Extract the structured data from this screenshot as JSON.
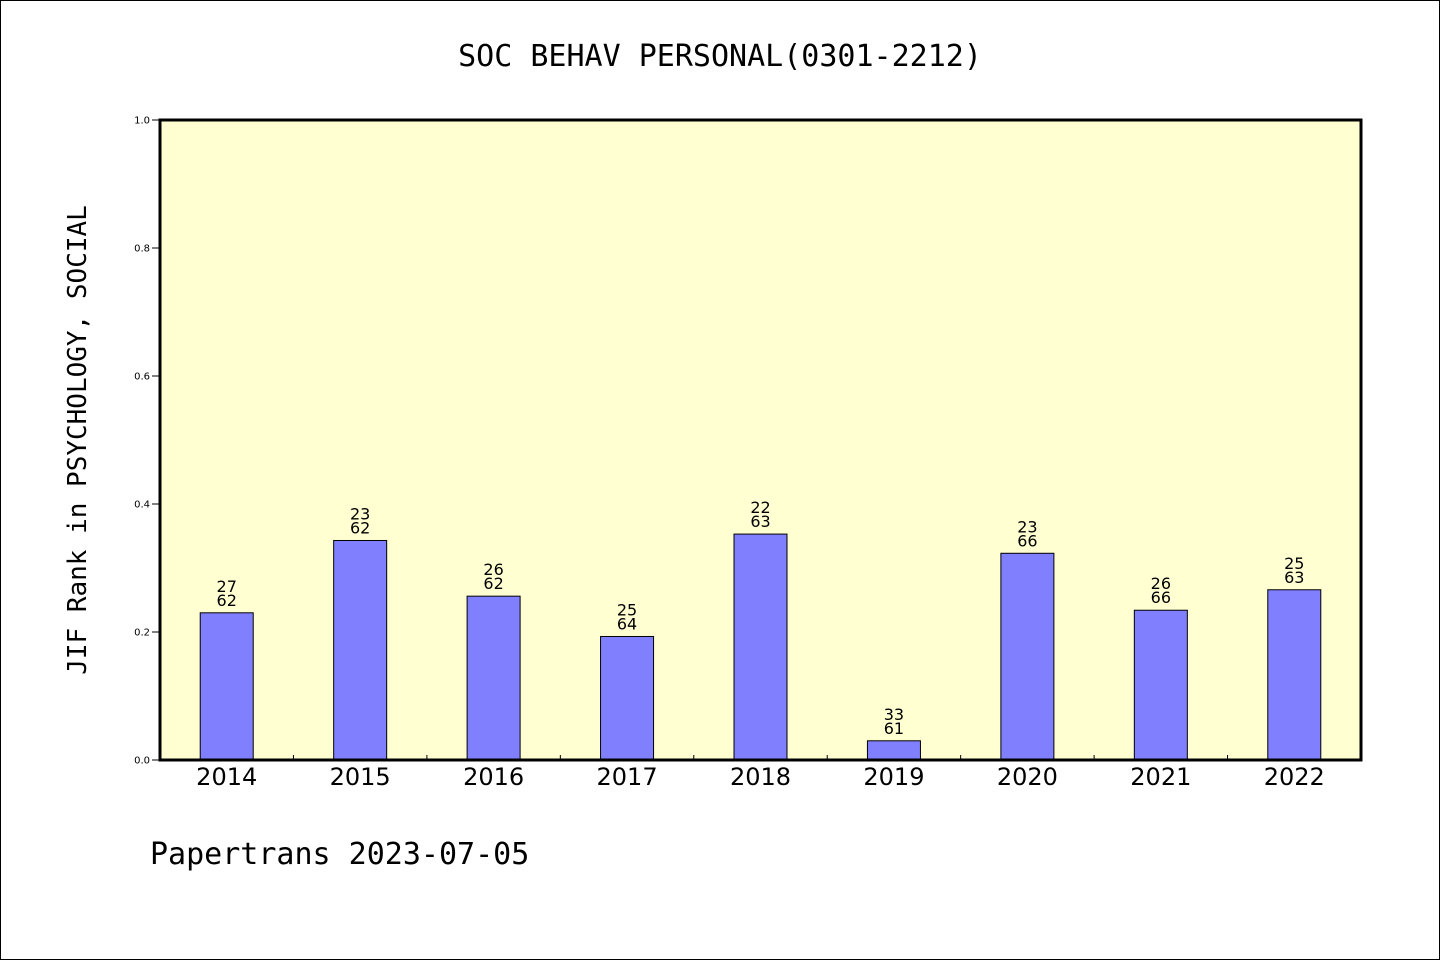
{
  "chart_data": {
    "type": "bar",
    "title": "SOC BEHAV PERSONAL(0301-2212)",
    "ylabel": "JIF Rank in PSYCHOLOGY, SOCIAL",
    "xlabel": "",
    "ylim": [
      0,
      1.0
    ],
    "yticks": [
      "0.0",
      "0.2",
      "0.4",
      "0.6",
      "0.8",
      "1.0"
    ],
    "categories": [
      "2014",
      "2015",
      "2016",
      "2017",
      "2018",
      "2019",
      "2020",
      "2021",
      "2022"
    ],
    "values": [
      0.23,
      0.343,
      0.256,
      0.193,
      0.353,
      0.03,
      0.323,
      0.234,
      0.266
    ],
    "ranks": [
      "27",
      "23",
      "26",
      "25",
      "22",
      "33",
      "23",
      "26",
      "25"
    ],
    "totals": [
      "62",
      "62",
      "62",
      "64",
      "63",
      "61",
      "66",
      "66",
      "63"
    ],
    "grid": false,
    "colors": {
      "plot_background": "#ffffd2",
      "bar_fill": "#8080ff",
      "bar_stroke": "#000000"
    }
  },
  "footer": "Papertrans 2023-07-05"
}
